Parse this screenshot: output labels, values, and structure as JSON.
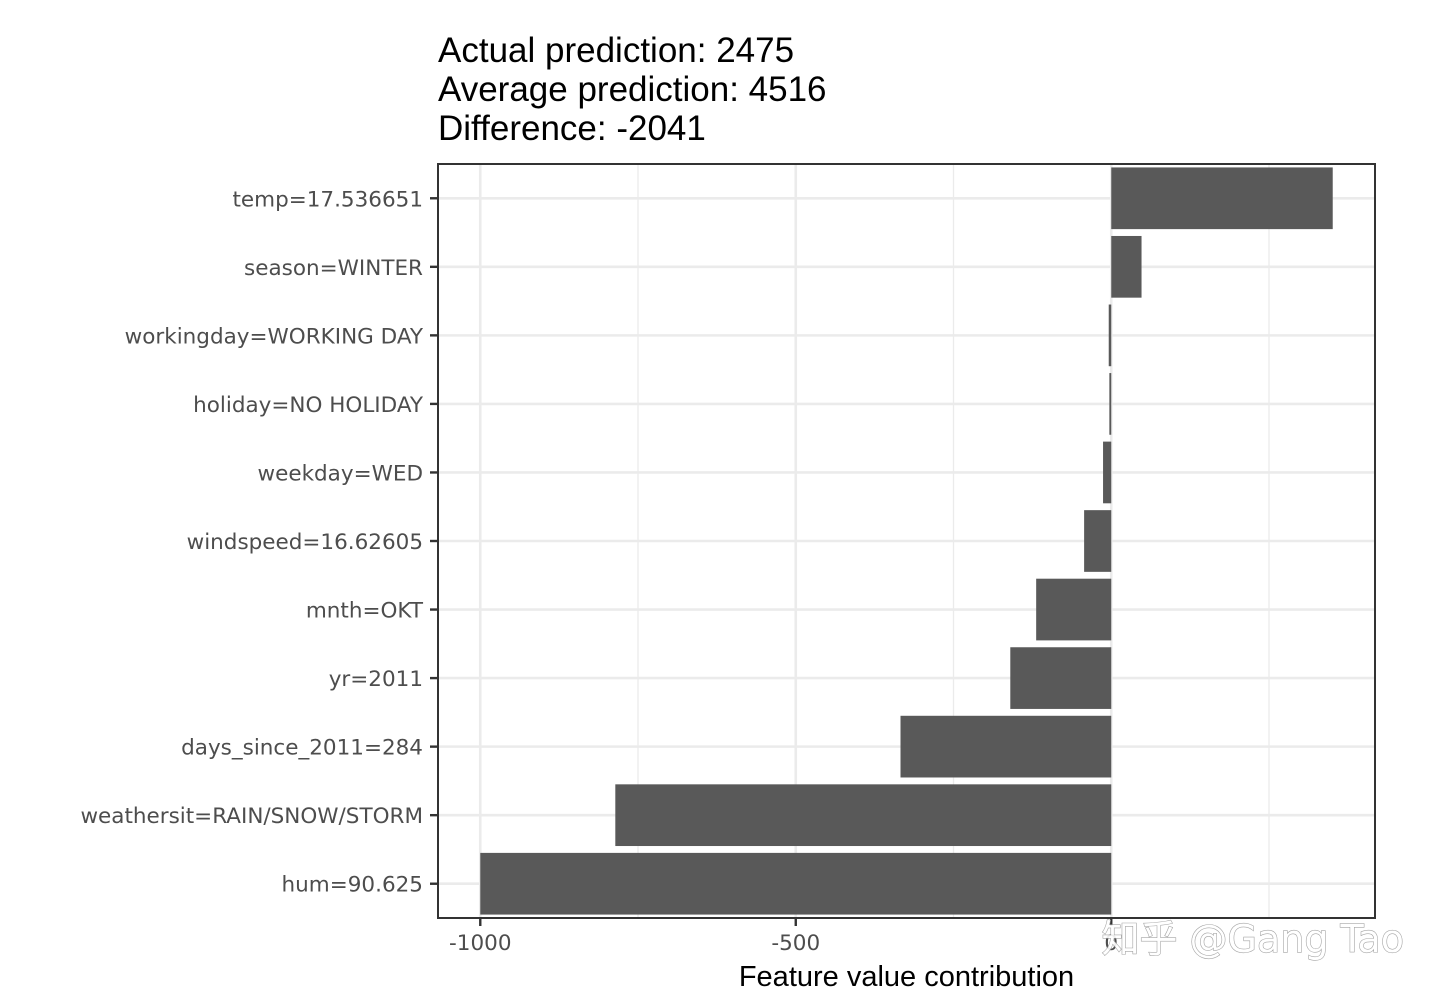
{
  "chart_data": {
    "type": "bar",
    "orientation": "horizontal",
    "title_lines": [
      "Actual prediction: 2475",
      "Average prediction: 4516",
      "Difference: -2041"
    ],
    "xlabel": "Feature value contribution",
    "ylabel": "",
    "categories": [
      "temp=17.536651",
      "season=WINTER",
      "workingday=WORKING DAY",
      "holiday=NO HOLIDAY",
      "weekday=WED",
      "windspeed=16.62605",
      "mnth=OKT",
      "yr=2011",
      "days_since_2011=284",
      "weathersit=RAIN/SNOW/STORM",
      "hum=90.625"
    ],
    "values": [
      351,
      48,
      -4,
      -3,
      -13,
      -43,
      -119,
      -160,
      -334,
      -786,
      -1000
    ],
    "xlim": [
      -1067,
      418
    ],
    "x_ticks": [
      -1000,
      -500,
      0
    ],
    "x_tick_labels": [
      "-1000",
      "-500",
      "0"
    ],
    "grid": true,
    "bar_color": "#595959",
    "background": "#ffffff",
    "grid_color": "#ebebeb",
    "panel_border_color": "#333333"
  },
  "watermark": "知乎 @Gang Tao"
}
